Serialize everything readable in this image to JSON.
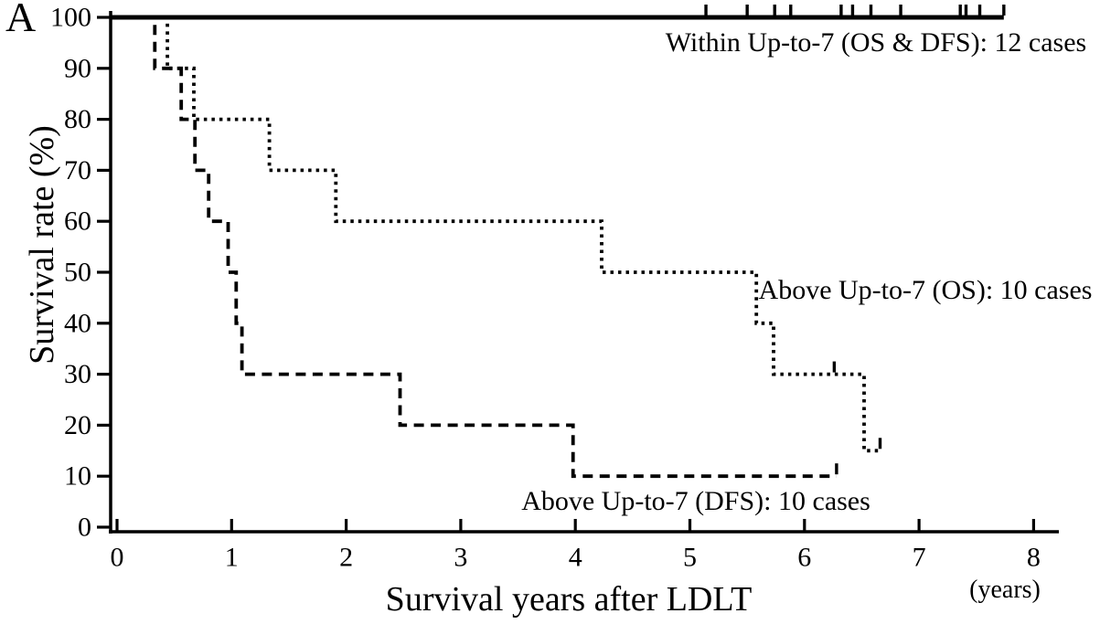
{
  "panel_label": "A",
  "chart_data": {
    "type": "line",
    "subtype": "kaplan-meier-step",
    "title": "",
    "xlabel": "Survival years after LDLT",
    "xunit_label": "(years)",
    "ylabel": "Survival rate (%)",
    "xlim": [
      0,
      8.3
    ],
    "ylim": [
      0,
      100
    ],
    "xticks": [
      0,
      1,
      2,
      3,
      4,
      5,
      6,
      7,
      8
    ],
    "yticks": [
      0,
      10,
      20,
      30,
      40,
      50,
      60,
      70,
      80,
      90,
      100
    ],
    "grid": false,
    "legend_position": "inline-annotations",
    "axis_color": "#000000",
    "series": [
      {
        "name": "within-up-to-7-os-dfs",
        "label": "Within Up-to-7 (OS & DFS): 12 cases",
        "line_style": "solid",
        "color": "#000000",
        "cases": 12,
        "points": [
          [
            0,
            100
          ],
          [
            7.74,
            100
          ]
        ],
        "censor_marks": [
          [
            5.14,
            100
          ],
          [
            5.5,
            100
          ],
          [
            5.74,
            100
          ],
          [
            5.88,
            100
          ],
          [
            6.32,
            100
          ],
          [
            6.42,
            100
          ],
          [
            6.58,
            100
          ],
          [
            6.84,
            100
          ],
          [
            7.36,
            100
          ],
          [
            7.41,
            100
          ],
          [
            7.53,
            100
          ],
          [
            7.74,
            100
          ]
        ]
      },
      {
        "name": "above-up-to-7-os",
        "label": "Above Up-to-7 (OS): 10 cases",
        "line_style": "dotted",
        "color": "#000000",
        "cases": 10,
        "points": [
          [
            0,
            100
          ],
          [
            0.44,
            100
          ],
          [
            0.44,
            90
          ],
          [
            0.67,
            90
          ],
          [
            0.67,
            80
          ],
          [
            1.33,
            80
          ],
          [
            1.33,
            70
          ],
          [
            1.91,
            70
          ],
          [
            1.91,
            60
          ],
          [
            4.23,
            60
          ],
          [
            4.23,
            50
          ],
          [
            5.58,
            50
          ],
          [
            5.58,
            40
          ],
          [
            5.73,
            40
          ],
          [
            5.73,
            30
          ],
          [
            6.52,
            30
          ],
          [
            6.52,
            15
          ],
          [
            6.66,
            15
          ]
        ],
        "censor_marks": [
          [
            6.26,
            30
          ],
          [
            6.66,
            15
          ]
        ]
      },
      {
        "name": "above-up-to-7-dfs",
        "label": "Above Up-to-7 (DFS): 10 cases",
        "line_style": "dashed",
        "color": "#000000",
        "cases": 10,
        "points": [
          [
            0,
            100
          ],
          [
            0.33,
            100
          ],
          [
            0.33,
            90
          ],
          [
            0.56,
            90
          ],
          [
            0.56,
            80
          ],
          [
            0.68,
            80
          ],
          [
            0.68,
            70
          ],
          [
            0.8,
            70
          ],
          [
            0.8,
            60
          ],
          [
            0.97,
            60
          ],
          [
            0.97,
            50
          ],
          [
            1.04,
            50
          ],
          [
            1.04,
            40
          ],
          [
            1.09,
            40
          ],
          [
            1.09,
            30
          ],
          [
            2.47,
            30
          ],
          [
            2.47,
            20
          ],
          [
            3.98,
            20
          ],
          [
            3.98,
            10
          ],
          [
            6.28,
            10
          ]
        ],
        "censor_marks": [
          [
            6.28,
            10
          ]
        ]
      }
    ]
  }
}
